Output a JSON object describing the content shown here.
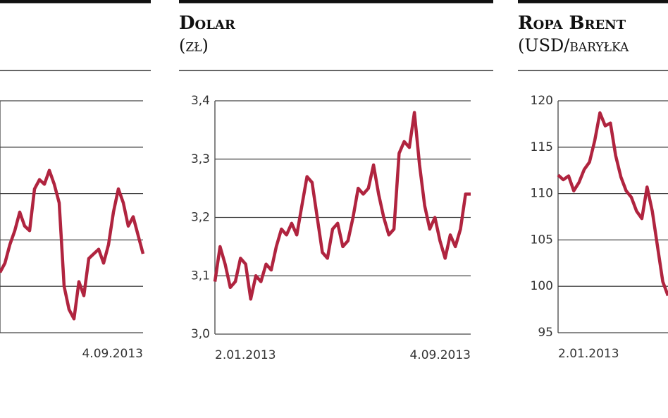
{
  "chart_data": [
    {
      "type": "line",
      "categories": [
        null,
        null,
        null,
        null,
        null,
        null,
        null,
        null,
        null,
        null,
        null,
        null,
        null,
        null,
        null,
        null,
        null,
        null,
        null,
        null,
        null,
        null,
        null,
        null,
        null,
        null,
        null,
        null,
        null,
        "4.09.2013"
      ],
      "series": [
        {
          "color": "#b0243f",
          "values": [
            4.13,
            4.15,
            4.19,
            4.22,
            4.26,
            4.23,
            4.22,
            4.31,
            4.33,
            4.32,
            4.35,
            4.32,
            4.28,
            4.1,
            4.05,
            4.03,
            4.11,
            4.08,
            4.16,
            4.17,
            4.18,
            4.15,
            4.19,
            4.26,
            4.31,
            4.28,
            4.23,
            4.25,
            4.21,
            4.17
          ]
        }
      ],
      "ylim": [
        4.0,
        4.5
      ],
      "yticks": [
        4.0,
        4.1,
        4.2,
        4.3,
        4.4,
        4.5
      ],
      "ytick_labels": false,
      "grid": true
    },
    {
      "type": "line",
      "title": "Dolar",
      "subtitle": "(zł)",
      "categories": [
        "2.01.2013",
        null,
        null,
        null,
        null,
        null,
        null,
        null,
        null,
        null,
        null,
        null,
        null,
        null,
        null,
        null,
        null,
        null,
        null,
        null,
        null,
        null,
        null,
        null,
        null,
        null,
        null,
        null,
        null,
        null,
        null,
        null,
        null,
        null,
        null,
        null,
        null,
        null,
        null,
        null,
        null,
        null,
        null,
        null,
        null,
        null,
        null,
        null,
        null,
        null,
        "4.09.2013"
      ],
      "series": [
        {
          "color": "#b0243f",
          "values": [
            3.09,
            3.15,
            3.12,
            3.08,
            3.09,
            3.13,
            3.12,
            3.06,
            3.1,
            3.09,
            3.12,
            3.11,
            3.15,
            3.18,
            3.17,
            3.19,
            3.17,
            3.22,
            3.27,
            3.26,
            3.2,
            3.14,
            3.13,
            3.18,
            3.19,
            3.15,
            3.16,
            3.2,
            3.25,
            3.24,
            3.25,
            3.29,
            3.24,
            3.2,
            3.17,
            3.18,
            3.31,
            3.33,
            3.32,
            3.38,
            3.29,
            3.22,
            3.18,
            3.2,
            3.16,
            3.13,
            3.17,
            3.15,
            3.18,
            3.24,
            3.24
          ]
        }
      ],
      "ylim": [
        3.0,
        3.4
      ],
      "yticks": [
        {
          "value": 3,
          "label": "3,0"
        },
        {
          "value": 3.1,
          "label": "3,1"
        },
        {
          "value": 3.2,
          "label": "3,2"
        },
        {
          "value": 3.3,
          "label": "3,3"
        },
        {
          "value": 3.4,
          "label": "3,4"
        }
      ],
      "ytick_labels": true,
      "grid": true
    },
    {
      "type": "line",
      "title": "Ropa Brent",
      "subtitle": "(USD/baryłka",
      "categories": [
        "2.01.2013",
        null,
        null,
        null,
        null,
        null,
        null,
        null,
        null,
        null,
        null,
        null,
        null,
        null,
        null,
        null,
        null,
        null,
        null,
        null,
        null,
        null
      ],
      "series": [
        {
          "color": "#b0243f",
          "values": [
            112,
            111.5,
            111.9,
            110.3,
            111.2,
            112.6,
            113.4,
            115.7,
            118.7,
            117.3,
            117.6,
            114.1,
            111.8,
            110.3,
            109.6,
            108.1,
            107.3,
            110.7,
            108.1,
            104.3,
            100.5,
            99
          ]
        }
      ],
      "ylim": [
        95,
        120
      ],
      "yticks": [
        95,
        100,
        105,
        110,
        115,
        120
      ],
      "ytick_labels": true,
      "grid": true
    }
  ]
}
